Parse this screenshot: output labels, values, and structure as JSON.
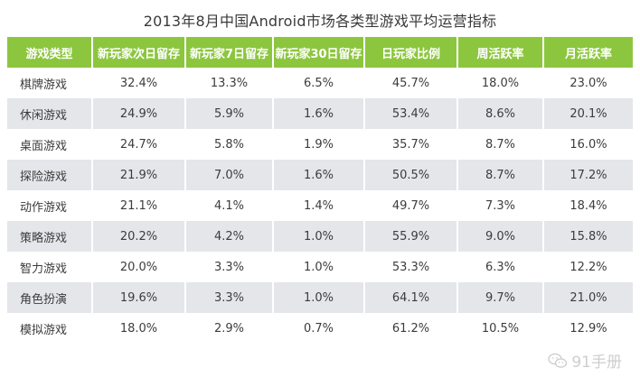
{
  "title": "2013年8月中国Android市场各类型游戏平均运营指标",
  "table": {
    "headers": [
      "游戏类型",
      "新玩家次日留存",
      "新玩家7日留存",
      "新玩家30日留存",
      "日玩家比例",
      "周活跃率",
      "月活跃率"
    ],
    "rows": [
      [
        "棋牌游戏",
        "32.4%",
        "13.3%",
        "6.5%",
        "45.7%",
        "18.0%",
        "23.0%"
      ],
      [
        "休闲游戏",
        "24.9%",
        "5.9%",
        "1.6%",
        "53.4%",
        "8.6%",
        "20.1%"
      ],
      [
        "桌面游戏",
        "24.7%",
        "5.8%",
        "1.9%",
        "35.7%",
        "8.7%",
        "16.0%"
      ],
      [
        "探险游戏",
        "21.9%",
        "7.0%",
        "1.6%",
        "50.5%",
        "8.7%",
        "17.2%"
      ],
      [
        "动作游戏",
        "21.1%",
        "4.1%",
        "1.4%",
        "49.7%",
        "7.3%",
        "18.4%"
      ],
      [
        "策略游戏",
        "20.2%",
        "4.2%",
        "1.0%",
        "55.9%",
        "9.0%",
        "15.8%"
      ],
      [
        "智力游戏",
        "20.0%",
        "3.3%",
        "1.0%",
        "53.3%",
        "6.3%",
        "12.2%"
      ],
      [
        "角色扮演",
        "19.6%",
        "3.3%",
        "1.0%",
        "64.1%",
        "9.7%",
        "21.0%"
      ],
      [
        "模拟游戏",
        "18.0%",
        "2.9%",
        "0.7%",
        "61.2%",
        "10.5%",
        "12.9%"
      ]
    ]
  },
  "watermark": {
    "text": "91手册",
    "icon": "wechat-icon"
  },
  "colors": {
    "header_bg": "#8cc63f",
    "stripe_bg": "#e4e6ea"
  }
}
